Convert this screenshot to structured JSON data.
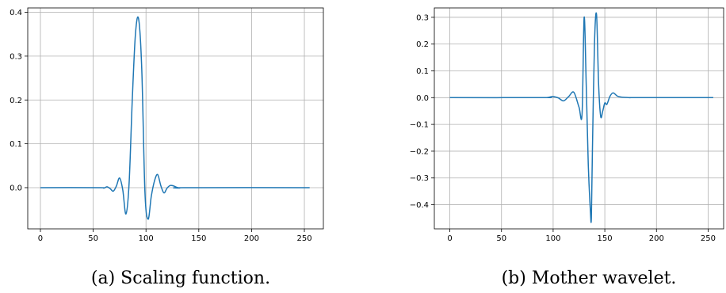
{
  "chart_data": [
    {
      "type": "line",
      "caption": "(a) Scaling function.",
      "xlabel": "",
      "ylabel": "",
      "xlim": [
        -12,
        268
      ],
      "ylim": [
        -0.094,
        0.41
      ],
      "xticks": [
        0,
        50,
        100,
        150,
        200,
        250
      ],
      "xtick_labels": [
        "0",
        "50",
        "100",
        "150",
        "200",
        "250"
      ],
      "yticks": [
        0.0,
        0.1,
        0.2,
        0.3,
        0.4
      ],
      "ytick_labels": [
        "0.0",
        "0.1",
        "0.2",
        "0.3",
        "0.4"
      ],
      "grid": true,
      "color": "#1f77b4",
      "series": [
        {
          "x": [
            0,
            55,
            60,
            63,
            66,
            69,
            72,
            75,
            78,
            81,
            84,
            87,
            90,
            93,
            96,
            99,
            102,
            105,
            108,
            111,
            114,
            117,
            120,
            123,
            126,
            129,
            132,
            136,
            255
          ],
          "y": [
            0.0,
            0.0,
            -0.001,
            0.002,
            -0.002,
            -0.008,
            0.004,
            0.022,
            -0.005,
            -0.06,
            0.01,
            0.2,
            0.35,
            0.385,
            0.27,
            -0.01,
            -0.072,
            -0.02,
            0.015,
            0.03,
            0.005,
            -0.012,
            -0.001,
            0.005,
            0.004,
            0.001,
            -0.001,
            0.0,
            0.0
          ]
        }
      ]
    },
    {
      "type": "line",
      "caption": "(b) Mother wavelet.",
      "xlabel": "",
      "ylabel": "",
      "xlim": [
        -15,
        265
      ],
      "ylim": [
        -0.49,
        0.335
      ],
      "xticks": [
        0,
        50,
        100,
        150,
        200,
        250
      ],
      "xtick_labels": [
        "0",
        "50",
        "100",
        "150",
        "200",
        "250"
      ],
      "yticks": [
        0.3,
        0.2,
        0.1,
        0.0,
        -0.1,
        -0.2,
        -0.3,
        -0.4
      ],
      "ytick_labels": [
        "0.3",
        "0.2",
        "0.1",
        "0.0",
        "−0.1",
        "−0.2",
        "−0.3",
        "−0.4"
      ],
      "grid": true,
      "color": "#1f77b4",
      "series": [
        {
          "x": [
            0,
            90,
            95,
            100,
            105,
            110,
            115,
            120,
            125,
            128,
            130,
            132,
            134,
            136,
            137,
            138,
            140,
            142,
            144,
            146,
            148,
            150,
            152,
            155,
            158,
            162,
            166,
            170,
            175,
            180,
            255
          ],
          "y": [
            0.0,
            0.0,
            0.001,
            0.004,
            -0.001,
            -0.012,
            0.004,
            0.02,
            -0.035,
            -0.06,
            0.3,
            0.05,
            -0.25,
            -0.42,
            -0.45,
            -0.2,
            0.2,
            0.31,
            0.05,
            -0.07,
            -0.05,
            -0.02,
            -0.025,
            0.005,
            0.018,
            0.006,
            0.002,
            0.001,
            0.0,
            0.0,
            0.0
          ]
        }
      ]
    }
  ]
}
